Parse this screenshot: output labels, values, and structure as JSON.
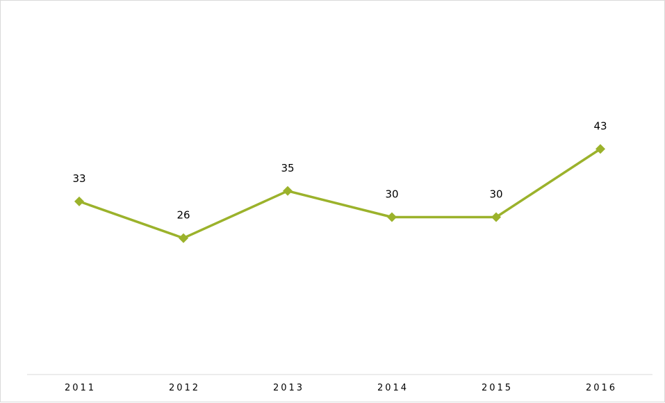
{
  "chart_data": {
    "type": "line",
    "categories": [
      "2011",
      "2012",
      "2013",
      "2014",
      "2015",
      "2016"
    ],
    "series": [
      {
        "values": [
          33,
          26,
          35,
          30,
          30,
          43
        ],
        "color": "#9BB22B",
        "marker": "diamond"
      }
    ],
    "data_labels": [
      "33",
      "26",
      "35",
      "30",
      "30",
      "43"
    ],
    "title": "",
    "xlabel": "",
    "ylabel": "",
    "ylim": [
      0,
      50
    ],
    "grid": false,
    "y_axis_visible": false,
    "legend": "none"
  }
}
